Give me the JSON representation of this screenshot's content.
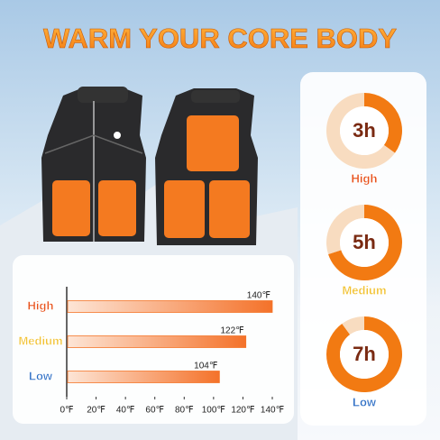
{
  "title": "WARM YOUR CORE BODY",
  "chart_data": [
    {
      "type": "hbar",
      "categories": [
        "High",
        "Medium",
        "Low"
      ],
      "values": [
        140,
        122,
        104
      ],
      "value_labels": [
        "140℉",
        "122℉",
        "104℉"
      ],
      "label_colors": [
        "#e8521c",
        "#f2c232",
        "#2a6cc4"
      ],
      "color": "#f4762a",
      "xlim": [
        0,
        140
      ],
      "xticks": [
        {
          "value": 0,
          "label": "0℉"
        },
        {
          "value": 20,
          "label": "20℉"
        },
        {
          "value": 40,
          "label": "40℉"
        },
        {
          "value": 60,
          "label": "60℉"
        },
        {
          "value": 80,
          "label": "80℉"
        },
        {
          "value": 100,
          "label": "100℉"
        },
        {
          "value": 120,
          "label": "120℉"
        },
        {
          "value": 140,
          "label": "140℉"
        }
      ]
    },
    {
      "type": "donut",
      "label": "3h",
      "caption": "High",
      "caption_color": "#e8521c",
      "values": [
        35,
        65
      ],
      "colors": [
        "#f27a12",
        "#f8dcc0"
      ]
    },
    {
      "type": "donut",
      "label": "5h",
      "caption": "Medium",
      "caption_color": "#f2c232",
      "values": [
        70,
        30
      ],
      "colors": [
        "#f27a12",
        "#f8dcc0"
      ]
    },
    {
      "type": "donut",
      "label": "7h",
      "caption": "Low",
      "caption_color": "#2a6cc4",
      "values": [
        90,
        10
      ],
      "colors": [
        "#f27a12",
        "#f8dcc0"
      ]
    }
  ]
}
